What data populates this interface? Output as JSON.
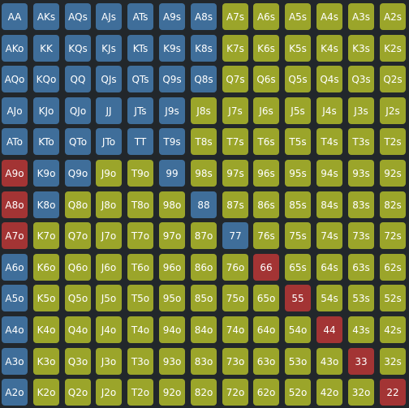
{
  "colors": {
    "background": "#22272b",
    "blue": "#3f6e9a",
    "olive": "#9ba52a",
    "red": "#a33434",
    "text": "#ffffff"
  },
  "grid": {
    "rows": [
      {
        "cells": [
          {
            "hand": "AA",
            "color": "blue"
          },
          {
            "hand": "AKs",
            "color": "blue"
          },
          {
            "hand": "AQs",
            "color": "blue"
          },
          {
            "hand": "AJs",
            "color": "blue"
          },
          {
            "hand": "ATs",
            "color": "blue"
          },
          {
            "hand": "A9s",
            "color": "blue"
          },
          {
            "hand": "A8s",
            "color": "blue"
          },
          {
            "hand": "A7s",
            "color": "olive"
          },
          {
            "hand": "A6s",
            "color": "olive"
          },
          {
            "hand": "A5s",
            "color": "olive"
          },
          {
            "hand": "A4s",
            "color": "olive"
          },
          {
            "hand": "A3s",
            "color": "olive"
          },
          {
            "hand": "A2s",
            "color": "olive"
          }
        ]
      },
      {
        "cells": [
          {
            "hand": "AKo",
            "color": "blue"
          },
          {
            "hand": "KK",
            "color": "blue"
          },
          {
            "hand": "KQs",
            "color": "blue"
          },
          {
            "hand": "KJs",
            "color": "blue"
          },
          {
            "hand": "KTs",
            "color": "blue"
          },
          {
            "hand": "K9s",
            "color": "blue"
          },
          {
            "hand": "K8s",
            "color": "blue"
          },
          {
            "hand": "K7s",
            "color": "olive"
          },
          {
            "hand": "K6s",
            "color": "olive"
          },
          {
            "hand": "K5s",
            "color": "olive"
          },
          {
            "hand": "K4s",
            "color": "olive"
          },
          {
            "hand": "K3s",
            "color": "olive"
          },
          {
            "hand": "K2s",
            "color": "olive"
          }
        ]
      },
      {
        "cells": [
          {
            "hand": "AQo",
            "color": "blue"
          },
          {
            "hand": "KQo",
            "color": "blue"
          },
          {
            "hand": "QQ",
            "color": "blue"
          },
          {
            "hand": "QJs",
            "color": "blue"
          },
          {
            "hand": "QTs",
            "color": "blue"
          },
          {
            "hand": "Q9s",
            "color": "blue"
          },
          {
            "hand": "Q8s",
            "color": "blue"
          },
          {
            "hand": "Q7s",
            "color": "olive"
          },
          {
            "hand": "Q6s",
            "color": "olive"
          },
          {
            "hand": "Q5s",
            "color": "olive"
          },
          {
            "hand": "Q4s",
            "color": "olive"
          },
          {
            "hand": "Q3s",
            "color": "olive"
          },
          {
            "hand": "Q2s",
            "color": "olive"
          }
        ]
      },
      {
        "cells": [
          {
            "hand": "AJo",
            "color": "blue"
          },
          {
            "hand": "KJo",
            "color": "blue"
          },
          {
            "hand": "QJo",
            "color": "blue"
          },
          {
            "hand": "JJ",
            "color": "blue"
          },
          {
            "hand": "JTs",
            "color": "blue"
          },
          {
            "hand": "J9s",
            "color": "blue"
          },
          {
            "hand": "J8s",
            "color": "olive"
          },
          {
            "hand": "J7s",
            "color": "olive"
          },
          {
            "hand": "J6s",
            "color": "olive"
          },
          {
            "hand": "J5s",
            "color": "olive"
          },
          {
            "hand": "J4s",
            "color": "olive"
          },
          {
            "hand": "J3s",
            "color": "olive"
          },
          {
            "hand": "J2s",
            "color": "olive"
          }
        ]
      },
      {
        "cells": [
          {
            "hand": "ATo",
            "color": "blue"
          },
          {
            "hand": "KTo",
            "color": "blue"
          },
          {
            "hand": "QTo",
            "color": "blue"
          },
          {
            "hand": "JTo",
            "color": "blue"
          },
          {
            "hand": "TT",
            "color": "blue"
          },
          {
            "hand": "T9s",
            "color": "blue"
          },
          {
            "hand": "T8s",
            "color": "olive"
          },
          {
            "hand": "T7s",
            "color": "olive"
          },
          {
            "hand": "T6s",
            "color": "olive"
          },
          {
            "hand": "T5s",
            "color": "olive"
          },
          {
            "hand": "T4s",
            "color": "olive"
          },
          {
            "hand": "T3s",
            "color": "olive"
          },
          {
            "hand": "T2s",
            "color": "olive"
          }
        ]
      },
      {
        "cells": [
          {
            "hand": "A9o",
            "color": "red"
          },
          {
            "hand": "K9o",
            "color": "blue"
          },
          {
            "hand": "Q9o",
            "color": "blue"
          },
          {
            "hand": "J9o",
            "color": "olive"
          },
          {
            "hand": "T9o",
            "color": "olive"
          },
          {
            "hand": "99",
            "color": "blue"
          },
          {
            "hand": "98s",
            "color": "olive"
          },
          {
            "hand": "97s",
            "color": "olive"
          },
          {
            "hand": "96s",
            "color": "olive"
          },
          {
            "hand": "95s",
            "color": "olive"
          },
          {
            "hand": "94s",
            "color": "olive"
          },
          {
            "hand": "93s",
            "color": "olive"
          },
          {
            "hand": "92s",
            "color": "olive"
          }
        ]
      },
      {
        "cells": [
          {
            "hand": "A8o",
            "color": "red"
          },
          {
            "hand": "K8o",
            "color": "blue"
          },
          {
            "hand": "Q8o",
            "color": "olive"
          },
          {
            "hand": "J8o",
            "color": "olive"
          },
          {
            "hand": "T8o",
            "color": "olive"
          },
          {
            "hand": "98o",
            "color": "olive"
          },
          {
            "hand": "88",
            "color": "blue"
          },
          {
            "hand": "87s",
            "color": "olive"
          },
          {
            "hand": "86s",
            "color": "olive"
          },
          {
            "hand": "85s",
            "color": "olive"
          },
          {
            "hand": "84s",
            "color": "olive"
          },
          {
            "hand": "83s",
            "color": "olive"
          },
          {
            "hand": "82s",
            "color": "olive"
          }
        ]
      },
      {
        "cells": [
          {
            "hand": "A7o",
            "color": "red"
          },
          {
            "hand": "K7o",
            "color": "olive"
          },
          {
            "hand": "Q7o",
            "color": "olive"
          },
          {
            "hand": "J7o",
            "color": "olive"
          },
          {
            "hand": "T7o",
            "color": "olive"
          },
          {
            "hand": "97o",
            "color": "olive"
          },
          {
            "hand": "87o",
            "color": "olive"
          },
          {
            "hand": "77",
            "color": "blue"
          },
          {
            "hand": "76s",
            "color": "olive"
          },
          {
            "hand": "75s",
            "color": "olive"
          },
          {
            "hand": "74s",
            "color": "olive"
          },
          {
            "hand": "73s",
            "color": "olive"
          },
          {
            "hand": "72s",
            "color": "olive"
          }
        ]
      },
      {
        "cells": [
          {
            "hand": "A6o",
            "color": "blue"
          },
          {
            "hand": "K6o",
            "color": "olive"
          },
          {
            "hand": "Q6o",
            "color": "olive"
          },
          {
            "hand": "J6o",
            "color": "olive"
          },
          {
            "hand": "T6o",
            "color": "olive"
          },
          {
            "hand": "96o",
            "color": "olive"
          },
          {
            "hand": "86o",
            "color": "olive"
          },
          {
            "hand": "76o",
            "color": "olive"
          },
          {
            "hand": "66",
            "color": "red"
          },
          {
            "hand": "65s",
            "color": "olive"
          },
          {
            "hand": "64s",
            "color": "olive"
          },
          {
            "hand": "63s",
            "color": "olive"
          },
          {
            "hand": "62s",
            "color": "olive"
          }
        ]
      },
      {
        "cells": [
          {
            "hand": "A5o",
            "color": "blue"
          },
          {
            "hand": "K5o",
            "color": "olive"
          },
          {
            "hand": "Q5o",
            "color": "olive"
          },
          {
            "hand": "J5o",
            "color": "olive"
          },
          {
            "hand": "T5o",
            "color": "olive"
          },
          {
            "hand": "95o",
            "color": "olive"
          },
          {
            "hand": "85o",
            "color": "olive"
          },
          {
            "hand": "75o",
            "color": "olive"
          },
          {
            "hand": "65o",
            "color": "olive"
          },
          {
            "hand": "55",
            "color": "red"
          },
          {
            "hand": "54s",
            "color": "olive"
          },
          {
            "hand": "53s",
            "color": "olive"
          },
          {
            "hand": "52s",
            "color": "olive"
          }
        ]
      },
      {
        "cells": [
          {
            "hand": "A4o",
            "color": "blue"
          },
          {
            "hand": "K4o",
            "color": "olive"
          },
          {
            "hand": "Q4o",
            "color": "olive"
          },
          {
            "hand": "J4o",
            "color": "olive"
          },
          {
            "hand": "T4o",
            "color": "olive"
          },
          {
            "hand": "94o",
            "color": "olive"
          },
          {
            "hand": "84o",
            "color": "olive"
          },
          {
            "hand": "74o",
            "color": "olive"
          },
          {
            "hand": "64o",
            "color": "olive"
          },
          {
            "hand": "54o",
            "color": "olive"
          },
          {
            "hand": "44",
            "color": "red"
          },
          {
            "hand": "43s",
            "color": "olive"
          },
          {
            "hand": "42s",
            "color": "olive"
          }
        ]
      },
      {
        "cells": [
          {
            "hand": "A3o",
            "color": "blue"
          },
          {
            "hand": "K3o",
            "color": "olive"
          },
          {
            "hand": "Q3o",
            "color": "olive"
          },
          {
            "hand": "J3o",
            "color": "olive"
          },
          {
            "hand": "T3o",
            "color": "olive"
          },
          {
            "hand": "93o",
            "color": "olive"
          },
          {
            "hand": "83o",
            "color": "olive"
          },
          {
            "hand": "73o",
            "color": "olive"
          },
          {
            "hand": "63o",
            "color": "olive"
          },
          {
            "hand": "53o",
            "color": "olive"
          },
          {
            "hand": "43o",
            "color": "olive"
          },
          {
            "hand": "33",
            "color": "red"
          },
          {
            "hand": "32s",
            "color": "olive"
          }
        ]
      },
      {
        "cells": [
          {
            "hand": "A2o",
            "color": "blue"
          },
          {
            "hand": "K2o",
            "color": "olive"
          },
          {
            "hand": "Q2o",
            "color": "olive"
          },
          {
            "hand": "J2o",
            "color": "olive"
          },
          {
            "hand": "T2o",
            "color": "olive"
          },
          {
            "hand": "92o",
            "color": "olive"
          },
          {
            "hand": "82o",
            "color": "olive"
          },
          {
            "hand": "72o",
            "color": "olive"
          },
          {
            "hand": "62o",
            "color": "olive"
          },
          {
            "hand": "52o",
            "color": "olive"
          },
          {
            "hand": "42o",
            "color": "olive"
          },
          {
            "hand": "32o",
            "color": "olive"
          },
          {
            "hand": "22",
            "color": "red"
          }
        ]
      }
    ]
  }
}
